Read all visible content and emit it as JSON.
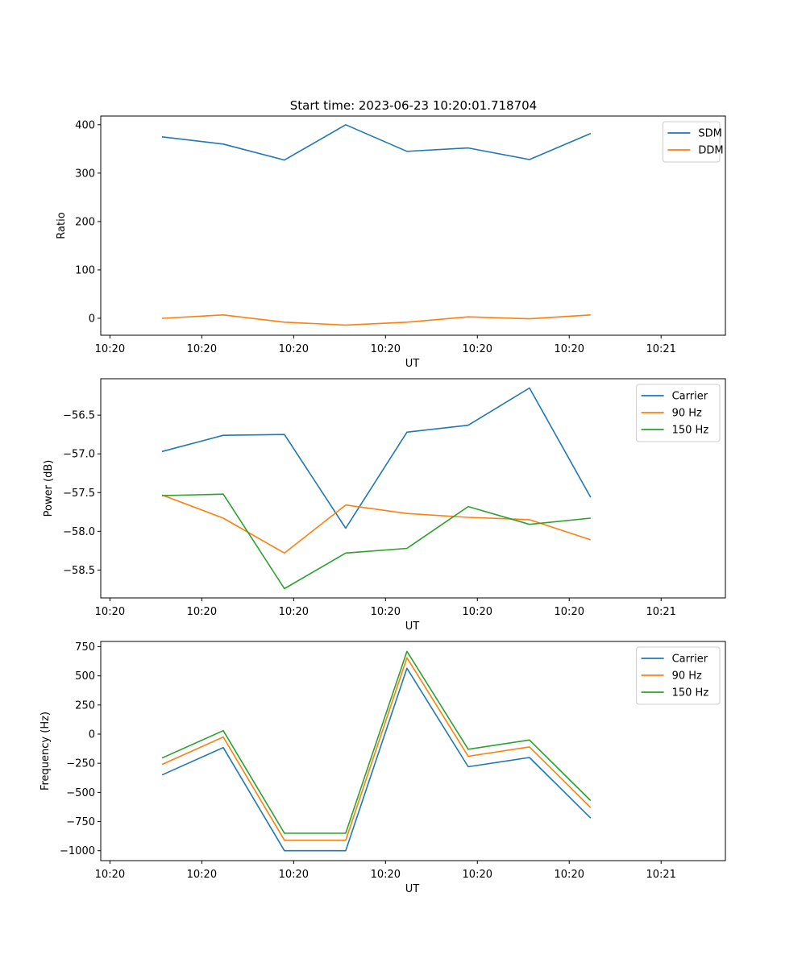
{
  "figure_title": "Start time: 2023-06-23 10:20:01.718704",
  "colors": {
    "blue": "#1f77b4",
    "orange": "#ff7f0e",
    "green": "#2ca02c"
  },
  "chart_data": [
    {
      "type": "line",
      "title": "Start time: 2023-06-23 10:20:01.718704",
      "xlabel": "UT",
      "ylabel": "Ratio",
      "x": [
        1,
        2,
        3,
        4,
        5,
        6,
        7,
        8
      ],
      "xtick_labels": [
        "10:20",
        "10:20",
        "10:20",
        "10:20",
        "10:20",
        "10:20",
        "10:21"
      ],
      "xlim": [
        0,
        10.2
      ],
      "ylim": [
        -35,
        418
      ],
      "yticks": [
        0,
        100,
        200,
        300,
        400
      ],
      "ytick_labels": [
        "0",
        "100",
        "200",
        "300",
        "400"
      ],
      "legend_position": "top-right",
      "grid": false,
      "series": [
        {
          "name": "SDM",
          "color": "#1f77b4",
          "values": [
            375,
            360,
            327,
            400,
            345,
            352,
            328,
            382
          ]
        },
        {
          "name": "DDM",
          "color": "#ff7f0e",
          "values": [
            0,
            7,
            -8,
            -14,
            -8,
            3,
            -1,
            7
          ]
        }
      ]
    },
    {
      "type": "line",
      "xlabel": "UT",
      "ylabel": "Power (dB)",
      "x": [
        1,
        2,
        3,
        4,
        5,
        6,
        7,
        8
      ],
      "xtick_labels": [
        "10:20",
        "10:20",
        "10:20",
        "10:20",
        "10:20",
        "10:20",
        "10:21"
      ],
      "xlim": [
        0,
        10.2
      ],
      "ylim": [
        -58.86,
        -56.03
      ],
      "yticks": [
        -58.5,
        -58.0,
        -57.5,
        -57.0,
        -56.5
      ],
      "ytick_labels": [
        "−58.5",
        "−58.0",
        "−57.5",
        "−57.0",
        "−56.5"
      ],
      "legend_position": "top-right",
      "grid": false,
      "series": [
        {
          "name": "Carrier",
          "color": "#1f77b4",
          "values": [
            -56.97,
            -56.76,
            -56.75,
            -57.96,
            -56.72,
            -56.63,
            -56.15,
            -57.56
          ]
        },
        {
          "name": "90 Hz",
          "color": "#ff7f0e",
          "values": [
            -57.53,
            -57.83,
            -58.28,
            -57.66,
            -57.77,
            -57.82,
            -57.85,
            -58.11
          ]
        },
        {
          "name": "150 Hz",
          "color": "#2ca02c",
          "values": [
            -57.54,
            -57.52,
            -58.74,
            -58.28,
            -58.22,
            -57.68,
            -57.91,
            -57.83
          ]
        }
      ]
    },
    {
      "type": "line",
      "xlabel": "UT",
      "ylabel": "Frequency (Hz)",
      "x": [
        1,
        2,
        3,
        4,
        5,
        6,
        7,
        8
      ],
      "xtick_labels": [
        "10:20",
        "10:20",
        "10:20",
        "10:20",
        "10:20",
        "10:20",
        "10:21"
      ],
      "xlim": [
        0,
        10.2
      ],
      "ylim": [
        -1085,
        795
      ],
      "yticks": [
        -1000,
        -750,
        -500,
        -250,
        0,
        250,
        500,
        750
      ],
      "ytick_labels": [
        "−1000",
        "−750",
        "−500",
        "−250",
        "0",
        "250",
        "500",
        "750"
      ],
      "legend_position": "top-right",
      "grid": false,
      "series": [
        {
          "name": "Carrier",
          "color": "#1f77b4",
          "values": [
            -350,
            -115,
            -1000,
            -1000,
            565,
            -280,
            -200,
            -720
          ]
        },
        {
          "name": "90 Hz",
          "color": "#ff7f0e",
          "values": [
            -260,
            -25,
            -910,
            -910,
            655,
            -190,
            -110,
            -630
          ]
        },
        {
          "name": "150 Hz",
          "color": "#2ca02c",
          "values": [
            -205,
            30,
            -850,
            -850,
            710,
            -130,
            -50,
            -570
          ]
        }
      ]
    }
  ]
}
